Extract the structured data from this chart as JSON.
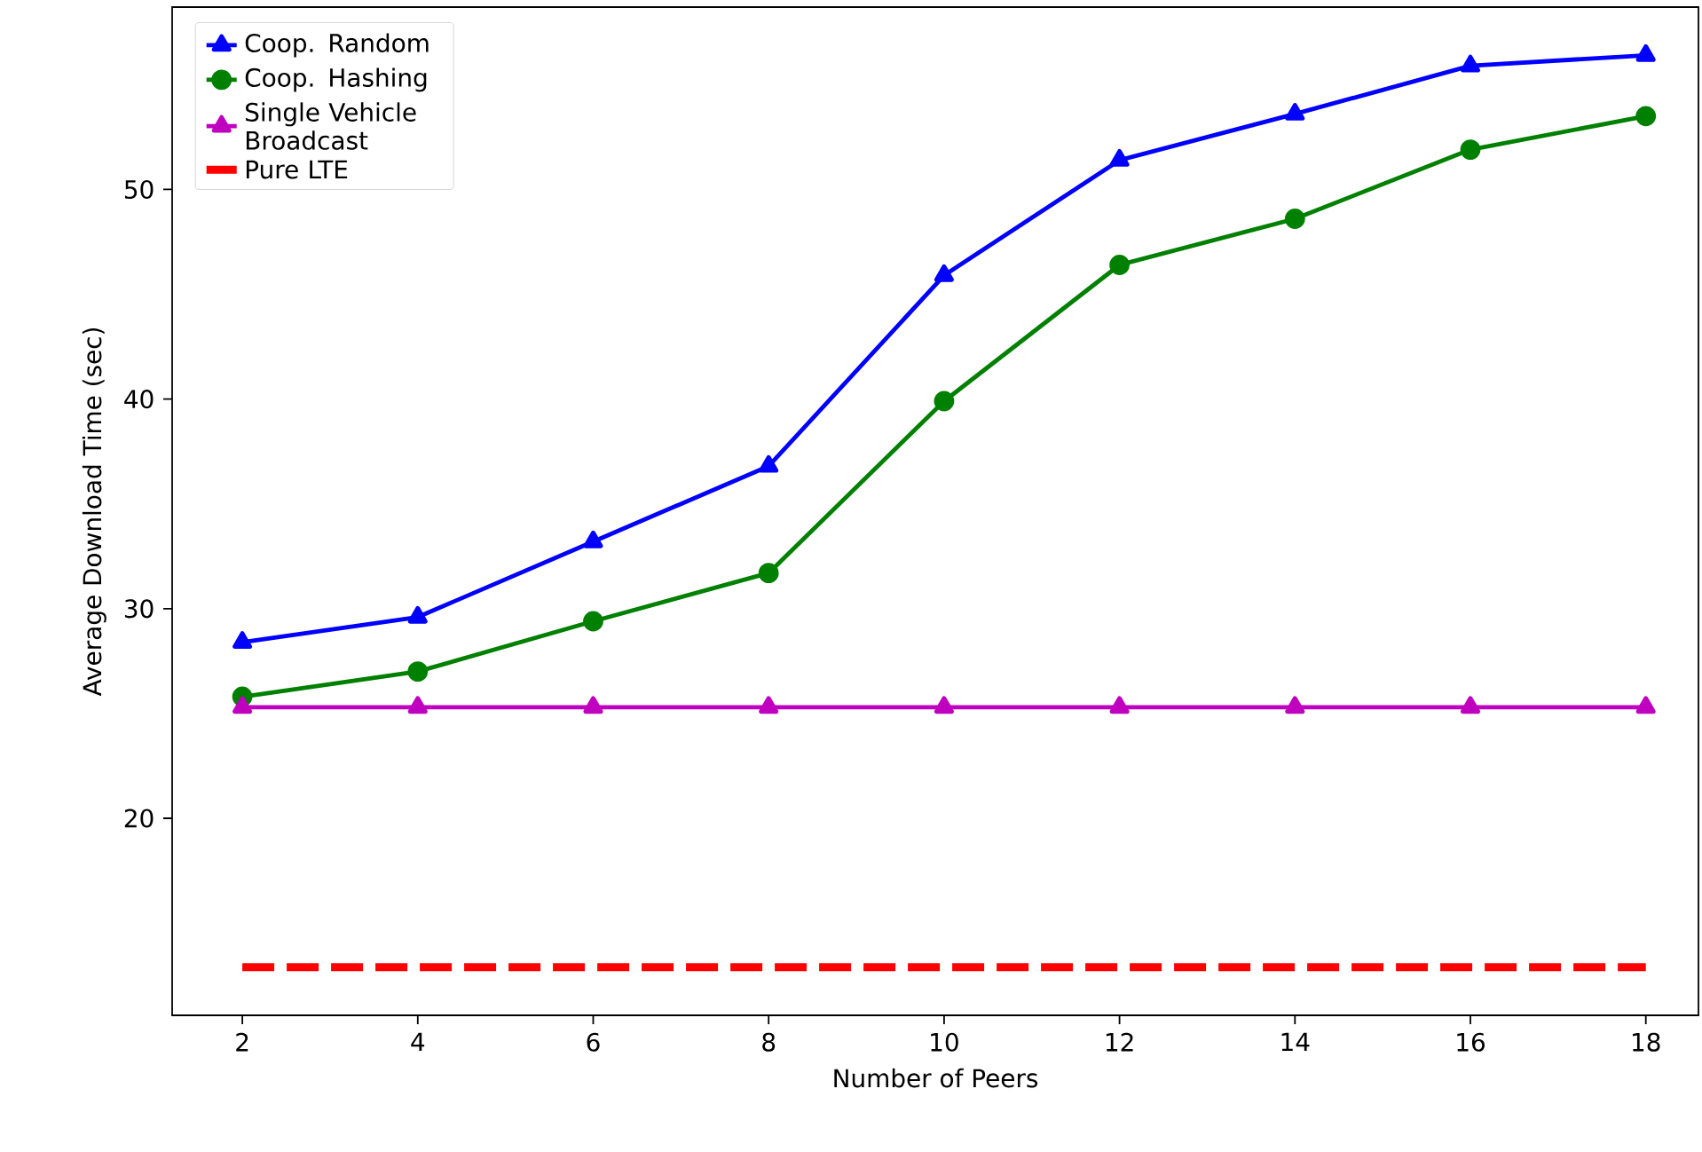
{
  "chart_data": {
    "type": "line",
    "xlabel": "Number of Peers",
    "ylabel": "Average Download Time (sec)",
    "x": [
      2,
      4,
      6,
      8,
      10,
      12,
      14,
      16,
      18
    ],
    "xlim": [
      1.2,
      18.6
    ],
    "ylim": [
      10.6,
      58.7
    ],
    "xticks": [
      2,
      4,
      6,
      8,
      10,
      12,
      14,
      16,
      18
    ],
    "yticks": [
      20,
      30,
      40,
      50
    ],
    "legend": "top left",
    "series": [
      {
        "name": "Coop. Random",
        "color": "#0000ff",
        "marker": "triangle",
        "line_style": "solid",
        "values": [
          28.4,
          29.6,
          33.2,
          36.8,
          45.9,
          51.4,
          53.6,
          55.9,
          56.4
        ]
      },
      {
        "name": "Coop. Hashing",
        "color": "#008000",
        "marker": "circle",
        "line_style": "solid",
        "values": [
          25.8,
          27.0,
          29.4,
          31.7,
          39.9,
          46.4,
          48.6,
          51.9,
          53.5
        ]
      },
      {
        "name": "Single Vehicle Broadcast",
        "color": "#bf00bf",
        "marker": "triangle",
        "line_style": "solid",
        "values": [
          25.3,
          25.3,
          25.3,
          25.3,
          25.3,
          25.3,
          25.3,
          25.3,
          25.3
        ]
      },
      {
        "name": "Pure LTE",
        "color": "#ff0000",
        "marker": "none",
        "line_style": "dashed",
        "values": [
          12.9,
          12.9,
          12.9,
          12.9,
          12.9,
          12.9,
          12.9,
          12.9,
          12.9
        ]
      }
    ]
  }
}
